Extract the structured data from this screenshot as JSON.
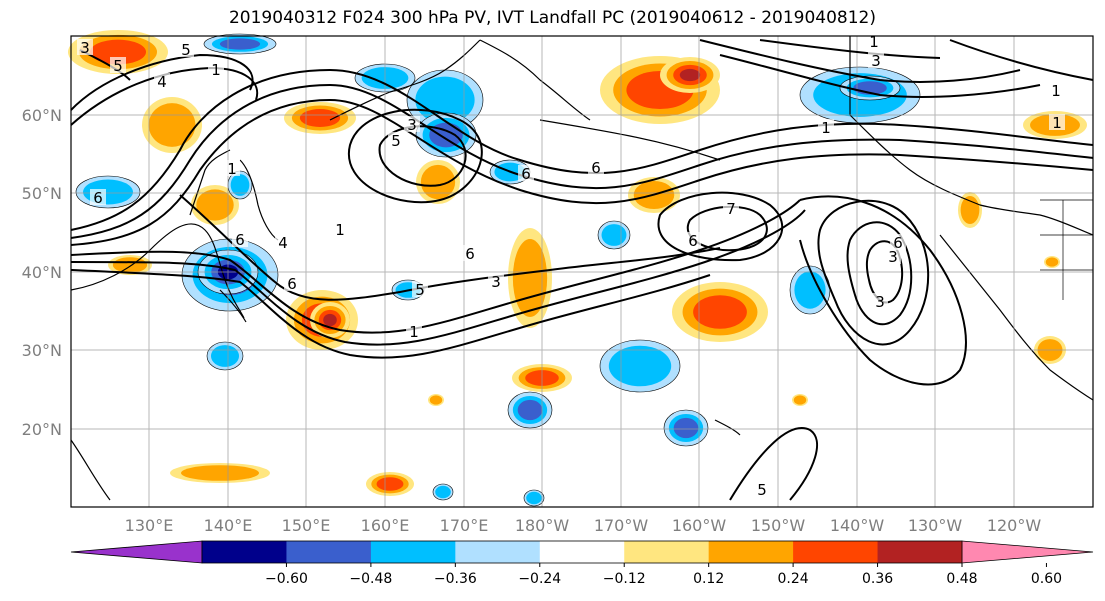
{
  "title": "2019040312 F024 300 hPa PV, IVT Landfall PC (2019040612 - 2019040812)",
  "map": {
    "lat_ticks": [
      "60°N",
      "50°N",
      "40°N",
      "30°N",
      "20°N"
    ],
    "lon_ticks": [
      "130°E",
      "140°E",
      "150°E",
      "160°E",
      "170°E",
      "180°W",
      "170°W",
      "160°W",
      "150°W",
      "140°W",
      "130°W",
      "120°W"
    ],
    "contour_labels": [
      "5",
      "5",
      "4",
      "1",
      "3",
      "1",
      "3",
      "5",
      "6",
      "1",
      "6",
      "6",
      "3",
      "1",
      "6",
      "6",
      "4",
      "5",
      "6",
      "3",
      "1",
      "7",
      "6",
      "6",
      "3",
      "1",
      "1",
      "1",
      "3",
      "5"
    ],
    "positive_color_levels": [
      "#FFE680",
      "#FFA500",
      "#FF4500",
      "#B22222"
    ],
    "negative_color_levels": [
      "#B0E0FF",
      "#00BFFF",
      "#3A5FCD",
      "#00008B"
    ]
  },
  "colorbar": {
    "colors": [
      "#9932CC",
      "#00008B",
      "#3A5FCD",
      "#00BFFF",
      "#B0E0FF",
      "#FFFFFF",
      "#FFE680",
      "#FFA500",
      "#FF4500",
      "#B22222",
      "#FF88B0"
    ],
    "tick_labels": [
      "−0.60",
      "−0.48",
      "−0.36",
      "−0.24",
      "−0.12",
      "0.12",
      "0.24",
      "0.36",
      "0.48",
      "0.60"
    ]
  }
}
